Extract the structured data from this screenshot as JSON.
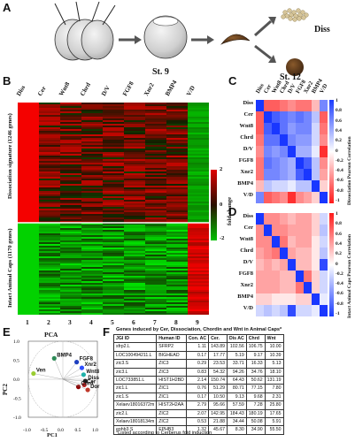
{
  "panels": {
    "a": "A",
    "b": "B",
    "c": "C",
    "d": "D",
    "e": "E",
    "f": "F"
  },
  "panel_a": {
    "stage_9": "St. 9",
    "stage_12": "St. 12",
    "diss": "Diss",
    "caps": "Caps"
  },
  "panel_b": {
    "columns": [
      "Diss",
      "Cer",
      "Wnt8",
      "Chrd",
      "D/V",
      "FGF8",
      "Xnr2",
      "BMP4",
      "V/D"
    ],
    "numbers": [
      "1",
      "2",
      "3",
      "4",
      "5",
      "6",
      "7",
      "8",
      "9"
    ],
    "upper_label": "Dissociation signature (1246 genes)",
    "lower_label": "Intact Animal Caps (1170 genes)",
    "scale_label": "fold change",
    "scale_max": "2",
    "scale_mid": "0",
    "scale_min": "-2"
  },
  "corr_labels": [
    "Diss",
    "Cer",
    "Wnt8",
    "Chrd",
    "D/V",
    "FGF8",
    "Xnr2",
    "BMP4",
    "V/D"
  ],
  "panel_c": {
    "side_label": "Dissociation Pearson Correlation",
    "ticks": [
      "1",
      "0.8",
      "0.6",
      "0.4",
      "0.2",
      "0",
      "-0.2",
      "-0.4",
      "-0.6",
      "-0.8",
      "-1"
    ],
    "matrix": [
      [
        1.0,
        -0.7,
        -0.7,
        -0.6,
        -0.5,
        -0.6,
        -0.6,
        -0.3,
        0.6
      ],
      [
        -0.7,
        1.0,
        0.8,
        0.7,
        0.6,
        0.7,
        0.6,
        0.3,
        -0.7
      ],
      [
        -0.7,
        0.8,
        1.0,
        0.7,
        0.5,
        0.6,
        0.6,
        0.2,
        -0.6
      ],
      [
        -0.6,
        0.7,
        0.7,
        1.0,
        0.6,
        0.5,
        0.5,
        0.2,
        -0.5
      ],
      [
        -0.5,
        0.6,
        0.5,
        0.6,
        1.0,
        0.4,
        0.4,
        0.1,
        -0.9
      ],
      [
        -0.6,
        0.7,
        0.6,
        0.5,
        0.4,
        1.0,
        0.8,
        0.3,
        -0.5
      ],
      [
        -0.6,
        0.6,
        0.6,
        0.5,
        0.4,
        0.8,
        1.0,
        0.3,
        -0.4
      ],
      [
        -0.3,
        0.3,
        0.2,
        0.2,
        0.1,
        0.3,
        0.3,
        1.0,
        -0.2
      ],
      [
        0.6,
        -0.7,
        -0.6,
        -0.5,
        -0.9,
        -0.5,
        -0.4,
        -0.2,
        1.0
      ]
    ]
  },
  "panel_d": {
    "side_label": "Intact Animal Caps Pearson Correlation",
    "ticks": [
      "1",
      "0.8",
      "0.6",
      "0.4",
      "0.2",
      "0",
      "-0.2",
      "-0.4",
      "-0.6",
      "-0.8",
      "-1"
    ],
    "matrix": [
      [
        1.0,
        0.5,
        0.5,
        0.4,
        0.3,
        0.4,
        0.4,
        0.2,
        -0.2
      ],
      [
        0.5,
        1.0,
        0.5,
        0.5,
        0.4,
        0.4,
        0.4,
        0.2,
        -0.3
      ],
      [
        0.5,
        0.5,
        1.0,
        0.6,
        0.3,
        0.4,
        0.4,
        0.1,
        -0.2
      ],
      [
        0.4,
        0.5,
        0.6,
        1.0,
        0.4,
        0.3,
        0.3,
        0.1,
        -0.3
      ],
      [
        0.3,
        0.4,
        0.3,
        0.4,
        1.0,
        0.3,
        0.3,
        0.1,
        -0.9
      ],
      [
        0.4,
        0.4,
        0.4,
        0.3,
        0.3,
        1.0,
        0.6,
        0.2,
        -0.2
      ],
      [
        0.4,
        0.4,
        0.4,
        0.3,
        0.3,
        0.6,
        1.0,
        0.2,
        -0.2
      ],
      [
        0.2,
        0.2,
        0.1,
        0.1,
        0.1,
        0.2,
        0.2,
        1.0,
        -0.1
      ],
      [
        -0.2,
        -0.3,
        -0.2,
        -0.3,
        -0.9,
        -0.2,
        -0.2,
        -0.1,
        1.0
      ]
    ]
  },
  "panel_e": {
    "title": "PCA",
    "xlabel": "PC1",
    "ylabel": "PC2",
    "xticks": [
      "-1.0",
      "-0.5",
      "0.0",
      "0.5",
      "1.0"
    ],
    "yticks": [
      "1.0",
      "0.5",
      "0.0",
      "-0.5",
      "-1.0"
    ],
    "points": [
      {
        "label": "BMP4",
        "x": -0.25,
        "y": 0.55,
        "color": "#2e8b57"
      },
      {
        "label": "Ven",
        "x": -0.85,
        "y": 0.15,
        "color": "#9acd32"
      },
      {
        "label": "FGF8",
        "x": 0.4,
        "y": 0.45,
        "color": "#1e3fbf"
      },
      {
        "label": "Xnr2",
        "x": 0.55,
        "y": 0.3,
        "color": "#3050ff"
      },
      {
        "label": "Wnt8",
        "x": 0.6,
        "y": 0.12,
        "color": "#20b2aa"
      },
      {
        "label": "Diss",
        "x": 0.65,
        "y": -0.05,
        "color": "#222222"
      },
      {
        "label": "Cer",
        "x": 0.62,
        "y": -0.15,
        "color": "#b22222"
      },
      {
        "label": "Chrd",
        "x": 0.45,
        "y": -0.2,
        "color": "#8b0000"
      },
      {
        "label": "Dor",
        "x": 0.72,
        "y": -0.28,
        "color": "#c0392b"
      }
    ]
  },
  "panel_f": {
    "caption": "Genes induced by Cer, Dissociation, Chordin and Wnt in Animal Caps*",
    "headers": [
      "JGI ID",
      "Human ID",
      "Con. AC",
      "Cer.",
      "Dis AC",
      "Chrd",
      "Wnt"
    ],
    "rows": [
      [
        "sfrp2.L",
        "SFRP2",
        "1.11",
        "143.89",
        "102.56",
        "106.75",
        "10.00"
      ],
      [
        "LOC100494211.L",
        "BIGHEAD",
        "0.17",
        "17.77",
        "5.19",
        "9.17",
        "10.39"
      ],
      [
        "zic3.S",
        "ZIC3",
        "0.29",
        "23.53",
        "33.71",
        "16.33",
        "5.13"
      ],
      [
        "zic3.L",
        "ZIC3",
        "0.83",
        "54.32",
        "94.26",
        "34.76",
        "18.10"
      ],
      [
        "LOC733851.L",
        "HIST1H2BD",
        "2.14",
        "150.74",
        "64.43",
        "50.62",
        "131.19"
      ],
      [
        "zic1.L",
        "ZIC1",
        "0.76",
        "51.29",
        "80.71",
        "77.15",
        "7.80"
      ],
      [
        "zic1.S",
        "ZIC1",
        "0.17",
        "10.50",
        "9.13",
        "9.68",
        "2.31"
      ],
      [
        "Xelaev18016372m",
        "HIST2H2AA",
        "2.79",
        "95.66",
        "57.59",
        "7.28",
        "25.80"
      ],
      [
        "zic2.L",
        "ZIC2",
        "2.07",
        "142.95",
        "184.43",
        "180.19",
        "17.65"
      ],
      [
        "Xelaev18018134m",
        "ZIC2",
        "0.53",
        "21.88",
        "34.44",
        "50.08",
        "5.91"
      ],
      [
        "ephb3.S",
        "EPHB3",
        "1.32",
        "45.67",
        "8.30",
        "34.90",
        "55.50"
      ]
    ],
    "footnote": "*Listed according to Cerberus fold induction"
  }
}
